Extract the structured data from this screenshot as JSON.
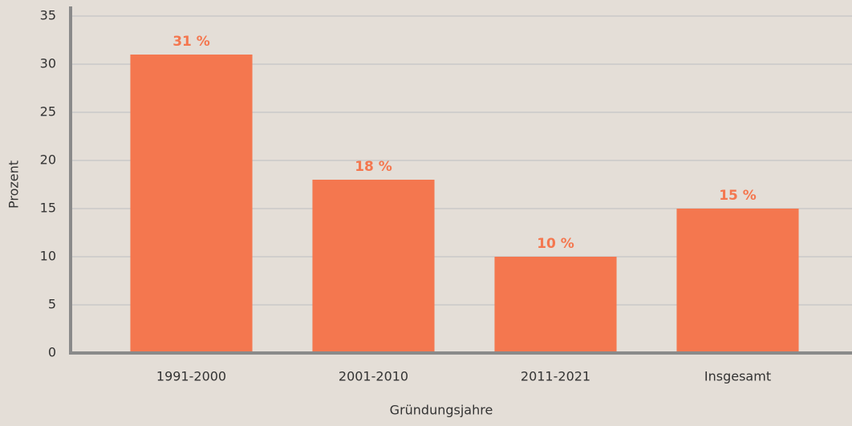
{
  "chart_data": {
    "type": "bar",
    "categories": [
      "1991-2000",
      "2001-2010",
      "2011-2021",
      "Insgesamt"
    ],
    "values": [
      31,
      18,
      10,
      15
    ],
    "value_labels": [
      "31 %",
      "18 %",
      "10 %",
      "15 %"
    ],
    "color": "#f4774f",
    "xlabel": "Gründungsjahre",
    "ylabel": "Prozent",
    "ylim": [
      0,
      35
    ],
    "yticks": [
      0,
      5,
      10,
      15,
      20,
      25,
      30,
      35
    ],
    "grid": true
  }
}
